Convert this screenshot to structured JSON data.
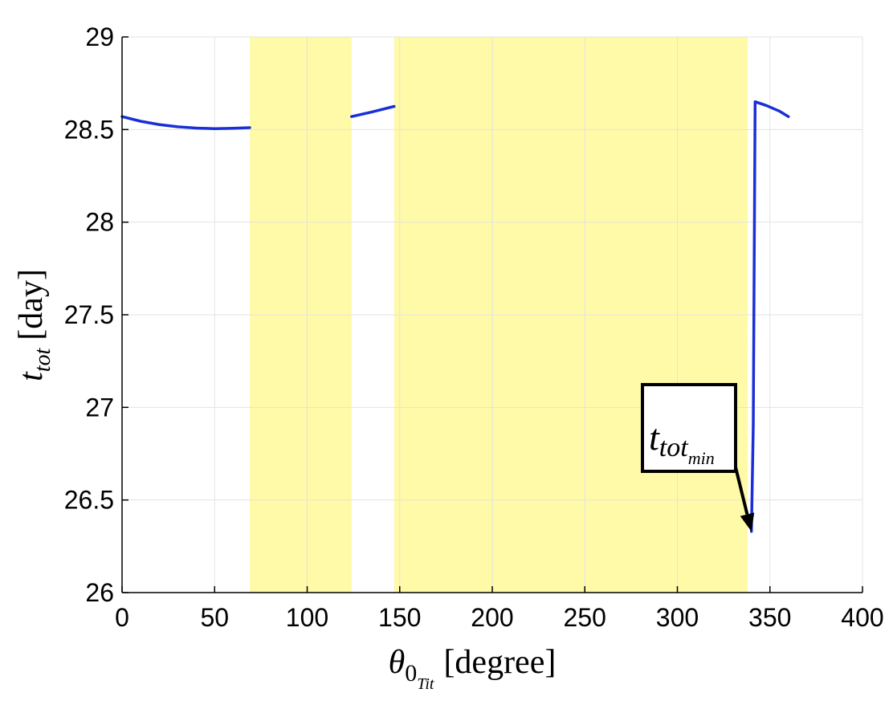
{
  "chart_data": {
    "type": "line",
    "xlabel": {
      "symbol": "θ",
      "sub1": "0",
      "sub2": "Tit",
      "unit": "[degree]"
    },
    "ylabel": {
      "symbol": "t",
      "sub": "tot",
      "unit": "[day]"
    },
    "xlim": [
      0,
      400
    ],
    "ylim": [
      26,
      29
    ],
    "xticks": [
      0,
      50,
      100,
      150,
      200,
      250,
      300,
      350,
      400
    ],
    "yticks": [
      26,
      26.5,
      27,
      27.5,
      28,
      28.5,
      29
    ],
    "grid": true,
    "shaded_regions": [
      [
        69,
        124
      ],
      [
        147,
        338
      ]
    ],
    "colors": {
      "line": "#1a2fd6",
      "shade": "#fffaa8",
      "grid": "#e3e3e3"
    },
    "series": [
      {
        "segments": [
          [
            [
              0,
              28.57
            ],
            [
              10,
              28.545
            ],
            [
              20,
              28.527
            ],
            [
              30,
              28.515
            ],
            [
              40,
              28.508
            ],
            [
              50,
              28.505
            ],
            [
              60,
              28.507
            ],
            [
              69,
              28.51
            ]
          ],
          [
            [
              124,
              28.57
            ],
            [
              135,
              28.595
            ],
            [
              147,
              28.625
            ]
          ],
          [
            [
              340,
              26.33
            ],
            [
              341,
              26.9
            ],
            [
              342,
              28.65
            ],
            [
              348,
              28.63
            ],
            [
              355,
              28.6
            ],
            [
              360,
              28.57
            ]
          ]
        ]
      }
    ],
    "annotation": {
      "symbol": "t",
      "sub": "tot",
      "subsub": "min",
      "point": [
        340,
        26.33
      ]
    }
  }
}
